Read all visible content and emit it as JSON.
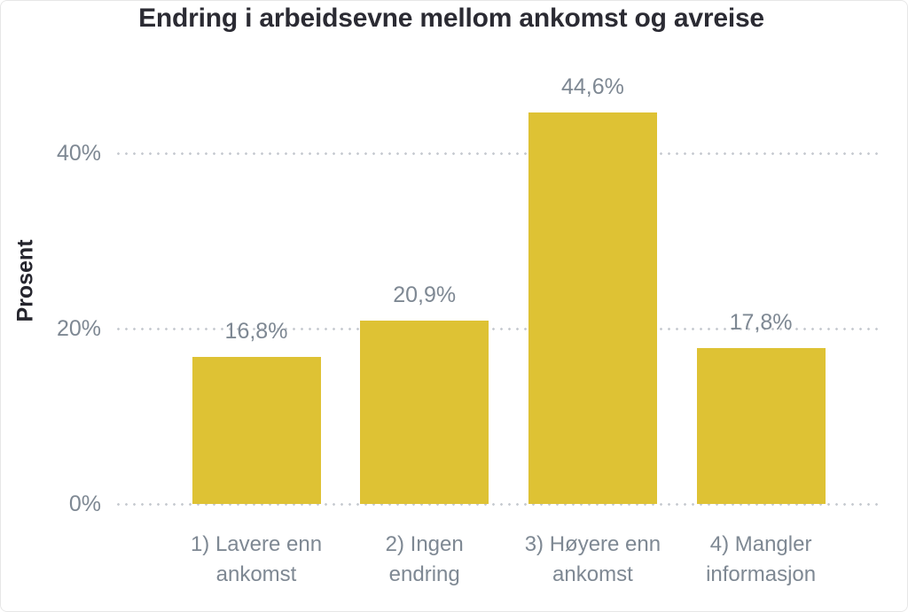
{
  "chart_data": {
    "type": "bar",
    "title": "Endring i arbeidsevne mellom ankomst og avreise",
    "xlabel": "",
    "ylabel": "Prosent",
    "categories": [
      "1) Lavere enn ankomst",
      "2) Ingen endring",
      "3) Høyere enn ankomst",
      "4) Mangler informasjon"
    ],
    "values": [
      16.8,
      20.9,
      44.6,
      17.8
    ],
    "data_labels": [
      "16,8%",
      "20,9%",
      "44,6%",
      "17,8%"
    ],
    "y_ticks": [
      {
        "label": "0%",
        "value": 0
      },
      {
        "label": "20%",
        "value": 20
      },
      {
        "label": "40%",
        "value": 40
      }
    ],
    "ylim": [
      0,
      45
    ],
    "grid": "dotted horizontal",
    "legend": "none"
  },
  "colors": {
    "bar": "#DEC234",
    "title": "#2B2B33",
    "axis_title": "#25252D",
    "label": "#7E8893",
    "grid": "#C7CBD1",
    "background": "#FFFFFF",
    "border": "#E7E7E7"
  }
}
